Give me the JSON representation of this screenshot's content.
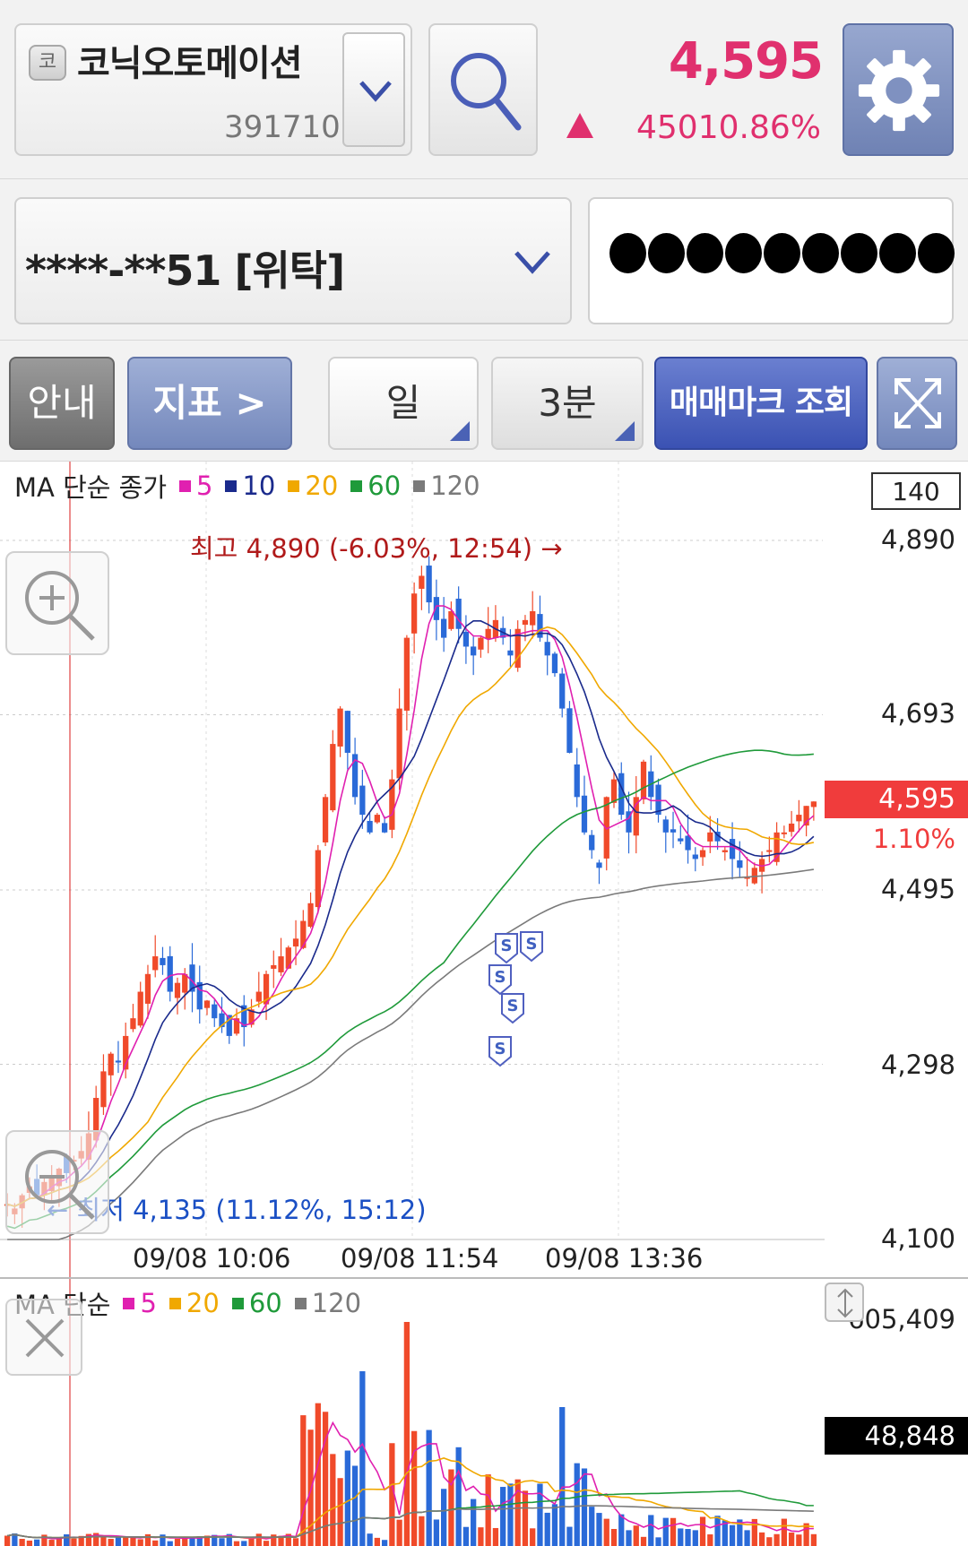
{
  "stock": {
    "market_badge": "코",
    "name": "코닉오토메이션",
    "code": "391710",
    "price": "4,595",
    "change": "450",
    "change_pct": "10.86%"
  },
  "account": {
    "number": "****-**51 [위탁]",
    "password_mask_count": 9
  },
  "toolbar": {
    "info_label": "안내",
    "indicator_label": "지표 >",
    "period_label": "일",
    "interval_label": "3분",
    "trade_mark_label": "매매마크 조회"
  },
  "chart": {
    "legend_prefix": "MA 단순 종가",
    "ma_labels": [
      "5",
      "10",
      "20",
      "60",
      "120"
    ],
    "ma_colors": [
      "#e020b0",
      "#1a2a8c",
      "#f0a800",
      "#1f9a3a",
      "#7a7a7a"
    ],
    "period_count": "140",
    "high_label": "최고 4,890 (-6.03%, 12:54) →",
    "low_label": "← 최저 4,135 (11.12%, 15:12)",
    "y_ticks": [
      "4,890",
      "4,693",
      "4,495",
      "4,298",
      "4,100"
    ],
    "current_price": "4,595",
    "current_pct": "1.10%",
    "x_ticks": [
      "09/08 10:06",
      "09/08 11:54",
      "09/08 13:36"
    ],
    "up_color": "#f04a2a",
    "down_color": "#2a6ad8",
    "sell_mark": "S"
  },
  "volume": {
    "legend_prefix": "MA 단순",
    "ma_labels": [
      "5",
      "20",
      "60",
      "120"
    ],
    "ma_colors": [
      "#e020b0",
      "#f0a800",
      "#1f9a3a",
      "#7a7a7a"
    ],
    "max_label": "605,409",
    "current_label": "48,848"
  },
  "chart_data": {
    "type": "candlestick",
    "x_ticks": [
      "09/08 10:06",
      "09/08 11:54",
      "09/08 13:36"
    ],
    "ylim": [
      4100,
      4890
    ],
    "y_ticks": [
      4890,
      4693,
      4495,
      4298,
      4100
    ],
    "high": 4890,
    "low": 4135,
    "current": 4595,
    "close_series": [
      4140,
      4135,
      4150,
      4160,
      4150,
      4165,
      4170,
      4180,
      4175,
      4190,
      4200,
      4220,
      4260,
      4290,
      4310,
      4300,
      4330,
      4350,
      4380,
      4400,
      4420,
      4410,
      4380,
      4390,
      4400,
      4380,
      4360,
      4370,
      4350,
      4340,
      4330,
      4350,
      4340,
      4360,
      4380,
      4400,
      4410,
      4420,
      4430,
      4440,
      4460,
      4480,
      4540,
      4600,
      4660,
      4700,
      4650,
      4600,
      4580,
      4560,
      4580,
      4560,
      4620,
      4700,
      4780,
      4830,
      4850,
      4820,
      4800,
      4780,
      4810,
      4790,
      4770,
      4760,
      4780,
      4790,
      4800,
      4780,
      4760,
      4790,
      4800,
      4810,
      4780,
      4760,
      4740,
      4700,
      4650,
      4600,
      4560,
      4540,
      4520,
      4600,
      4620,
      4580,
      4560,
      4600,
      4640,
      4600,
      4580,
      4560,
      4560,
      4550,
      4540,
      4530,
      4540,
      4560,
      4550,
      4540,
      4530,
      4520,
      4510,
      4520,
      4530,
      4540,
      4560,
      4560,
      4570,
      4580,
      4590,
      4595
    ],
    "volume_max": 605409,
    "volume_current": 48848
  }
}
